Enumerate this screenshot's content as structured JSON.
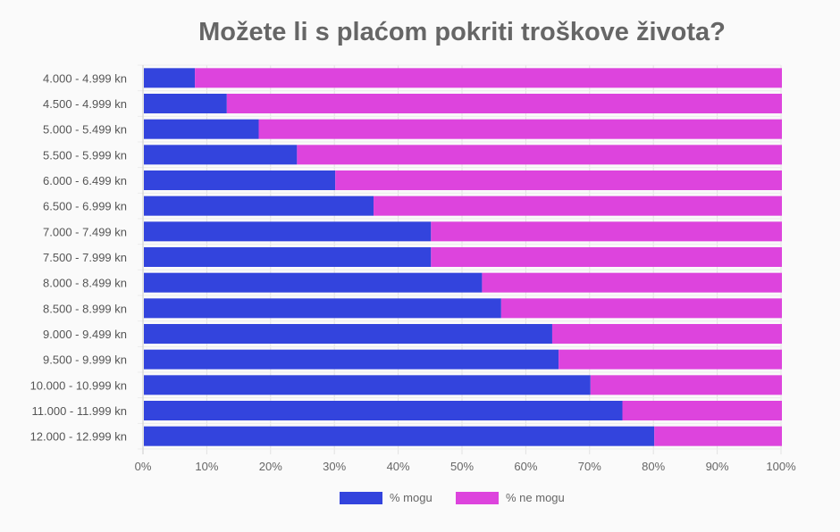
{
  "chart_data": {
    "type": "bar",
    "stacked": true,
    "orientation": "horizontal",
    "title": "Možete li s plaćom pokriti troškove života?",
    "categories": [
      "4.000 - 4.999 kn",
      "4.500 - 4.999 kn",
      "5.000 - 5.499 kn",
      "5.500 - 5.999 kn",
      "6.000 - 6.499 kn",
      "6.500 - 6.999 kn",
      "7.000 - 7.499 kn",
      "7.500 - 7.999 kn",
      "8.000 - 8.499 kn",
      "8.500 - 8.999 kn",
      "9.000 - 9.499 kn",
      "9.500 - 9.999 kn",
      "10.000 - 10.999 kn",
      "11.000 - 11.999 kn",
      "12.000 - 12.999 kn"
    ],
    "series": [
      {
        "name": "% mogu",
        "color": "#3344dd",
        "values": [
          8,
          13,
          18,
          24,
          30,
          36,
          45,
          45,
          53,
          56,
          64,
          65,
          70,
          75,
          80
        ]
      },
      {
        "name": "% ne mogu",
        "color": "#dd44dd",
        "values": [
          92,
          87,
          82,
          76,
          70,
          64,
          55,
          55,
          47,
          44,
          36,
          35,
          30,
          25,
          20
        ]
      }
    ],
    "xticks": [
      "0%",
      "10%",
      "20%",
      "30%",
      "40%",
      "50%",
      "60%",
      "70%",
      "80%",
      "90%",
      "100%"
    ],
    "xlim": [
      0,
      100
    ],
    "legend": "bottom"
  }
}
